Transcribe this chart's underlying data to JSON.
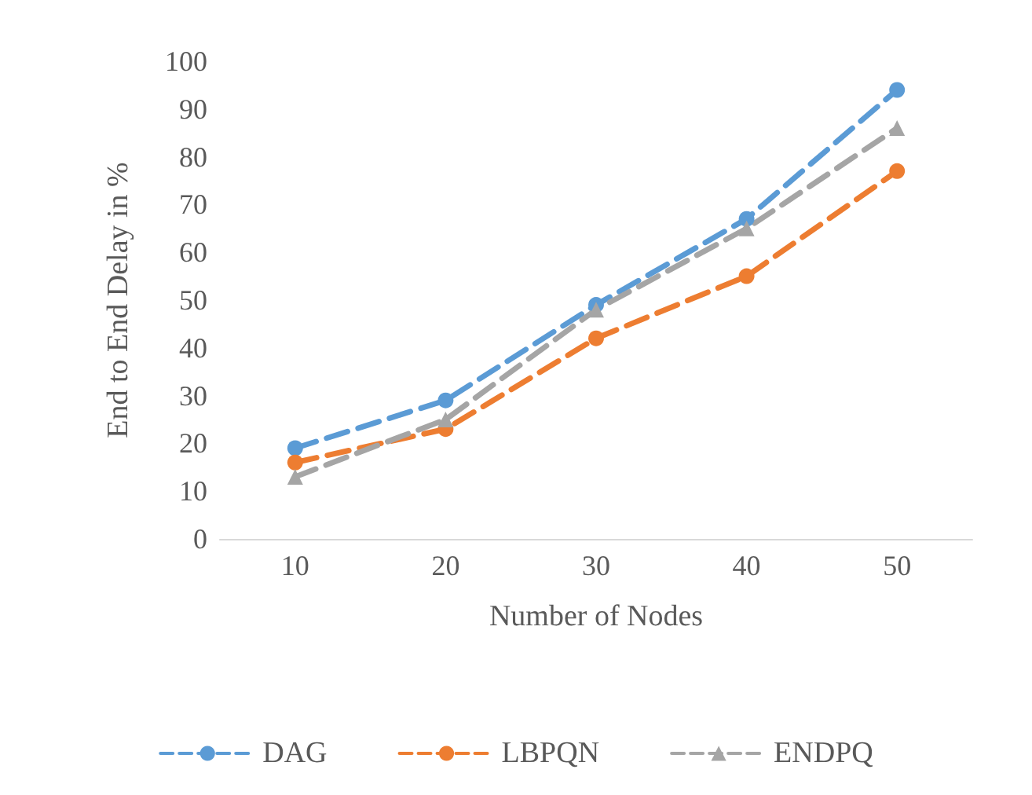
{
  "chart_data": {
    "type": "line",
    "xlabel": "Number of Nodes",
    "ylabel": "End to End Delay in %",
    "categories": [
      "10",
      "20",
      "30",
      "40",
      "50"
    ],
    "series": [
      {
        "name": "DAG",
        "color": "#5b9bd5",
        "marker": "circle",
        "values": [
          19,
          29,
          49,
          67,
          94
        ]
      },
      {
        "name": "LBPQN",
        "color": "#ed7d31",
        "marker": "circle",
        "values": [
          16,
          23,
          42,
          55,
          77
        ]
      },
      {
        "name": "ENDPQ",
        "color": "#a5a5a5",
        "marker": "triangle",
        "values": [
          13,
          25,
          48,
          65,
          86
        ]
      }
    ],
    "ylim": [
      0,
      100
    ],
    "yticks": [
      0,
      10,
      20,
      30,
      40,
      50,
      60,
      70,
      80,
      90,
      100
    ],
    "grid": false,
    "legend": "bottom",
    "line_style": "dashed"
  }
}
